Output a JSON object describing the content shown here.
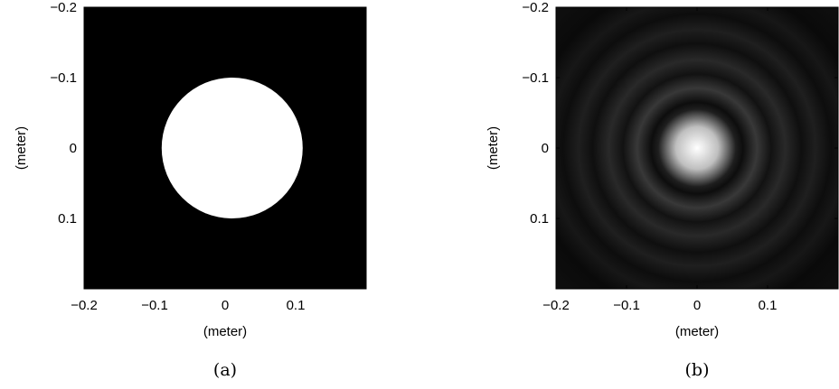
{
  "figures": [
    {
      "caption": "(a)",
      "chart_data": {
        "type": "heatmap",
        "description_of_content": "aperture",
        "shape": "circle",
        "center": [
          0.01,
          0
        ],
        "radius": 0.1,
        "inside_color": "#ffffff",
        "outside_color": "#000000",
        "xlim": [
          -0.2,
          0.2
        ],
        "ylim": [
          -0.2,
          0.2
        ],
        "xticks": [
          "−0.2",
          "−0.1",
          "0",
          "0.1"
        ],
        "xtick_values": [
          -0.2,
          -0.1,
          0,
          0.1
        ],
        "yticks": [
          "−0.2",
          "−0.1",
          "0",
          "0.1"
        ],
        "ytick_values": [
          -0.2,
          -0.1,
          0,
          0.1
        ],
        "xlabel": "(meter)",
        "ylabel": "(meter)",
        "y_reversed": true,
        "grid": false
      }
    },
    {
      "caption": "(b)",
      "chart_data": {
        "type": "heatmap",
        "shape": "airy-pattern",
        "center": [
          0,
          0
        ],
        "xlim": [
          -0.2,
          0.2
        ],
        "ylim": [
          -0.2,
          0.2
        ],
        "xticks": [
          "−0.2",
          "−0.1",
          "0",
          "0.1"
        ],
        "xtick_values": [
          -0.2,
          -0.1,
          0,
          0.1
        ],
        "yticks": [
          "−0.2",
          "−0.1",
          "0",
          "0.1"
        ],
        "ytick_values": [
          -0.2,
          -0.1,
          0,
          0.1
        ],
        "xlabel": "(meter)",
        "ylabel": "(meter)",
        "y_reversed": true,
        "grid": false,
        "ring_intensity": [
          {
            "r": 0.0,
            "level": 1.0
          },
          {
            "r": 0.03,
            "level": 0.75
          },
          {
            "r": 0.055,
            "level": 0.12
          },
          {
            "r": 0.065,
            "level": 0.05
          },
          {
            "r": 0.085,
            "level": 0.22
          },
          {
            "r": 0.105,
            "level": 0.07
          },
          {
            "r": 0.125,
            "level": 0.16
          },
          {
            "r": 0.148,
            "level": 0.06
          },
          {
            "r": 0.168,
            "level": 0.12
          },
          {
            "r": 0.19,
            "level": 0.05
          },
          {
            "r": 0.21,
            "level": 0.09
          },
          {
            "r": 0.235,
            "level": 0.04
          },
          {
            "r": 0.28,
            "level": 0.06
          }
        ]
      }
    }
  ]
}
